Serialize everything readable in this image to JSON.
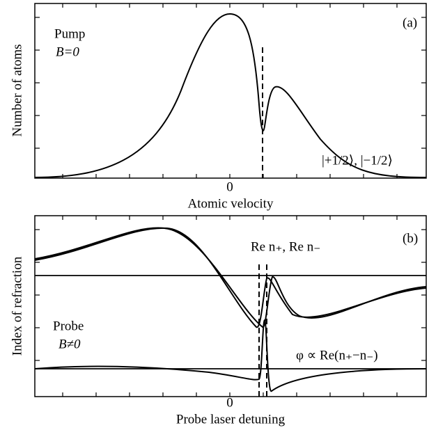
{
  "panels": [
    {
      "tag": "(a)",
      "y_label": "Number of atoms",
      "x_label": "Atomic velocity",
      "x_tick": "0",
      "annotations": [
        "Pump",
        "B=0",
        "|+1/2⟩, |−1/2⟩"
      ]
    },
    {
      "tag": "(b)",
      "y_label": "Index of refraction",
      "x_label": "Probe laser detuning",
      "x_tick": "0",
      "annotations": [
        "Re n₊, Re n₋",
        "Probe",
        "B≠0",
        "φ ∝ Re(n₊−n₋)"
      ]
    }
  ]
}
